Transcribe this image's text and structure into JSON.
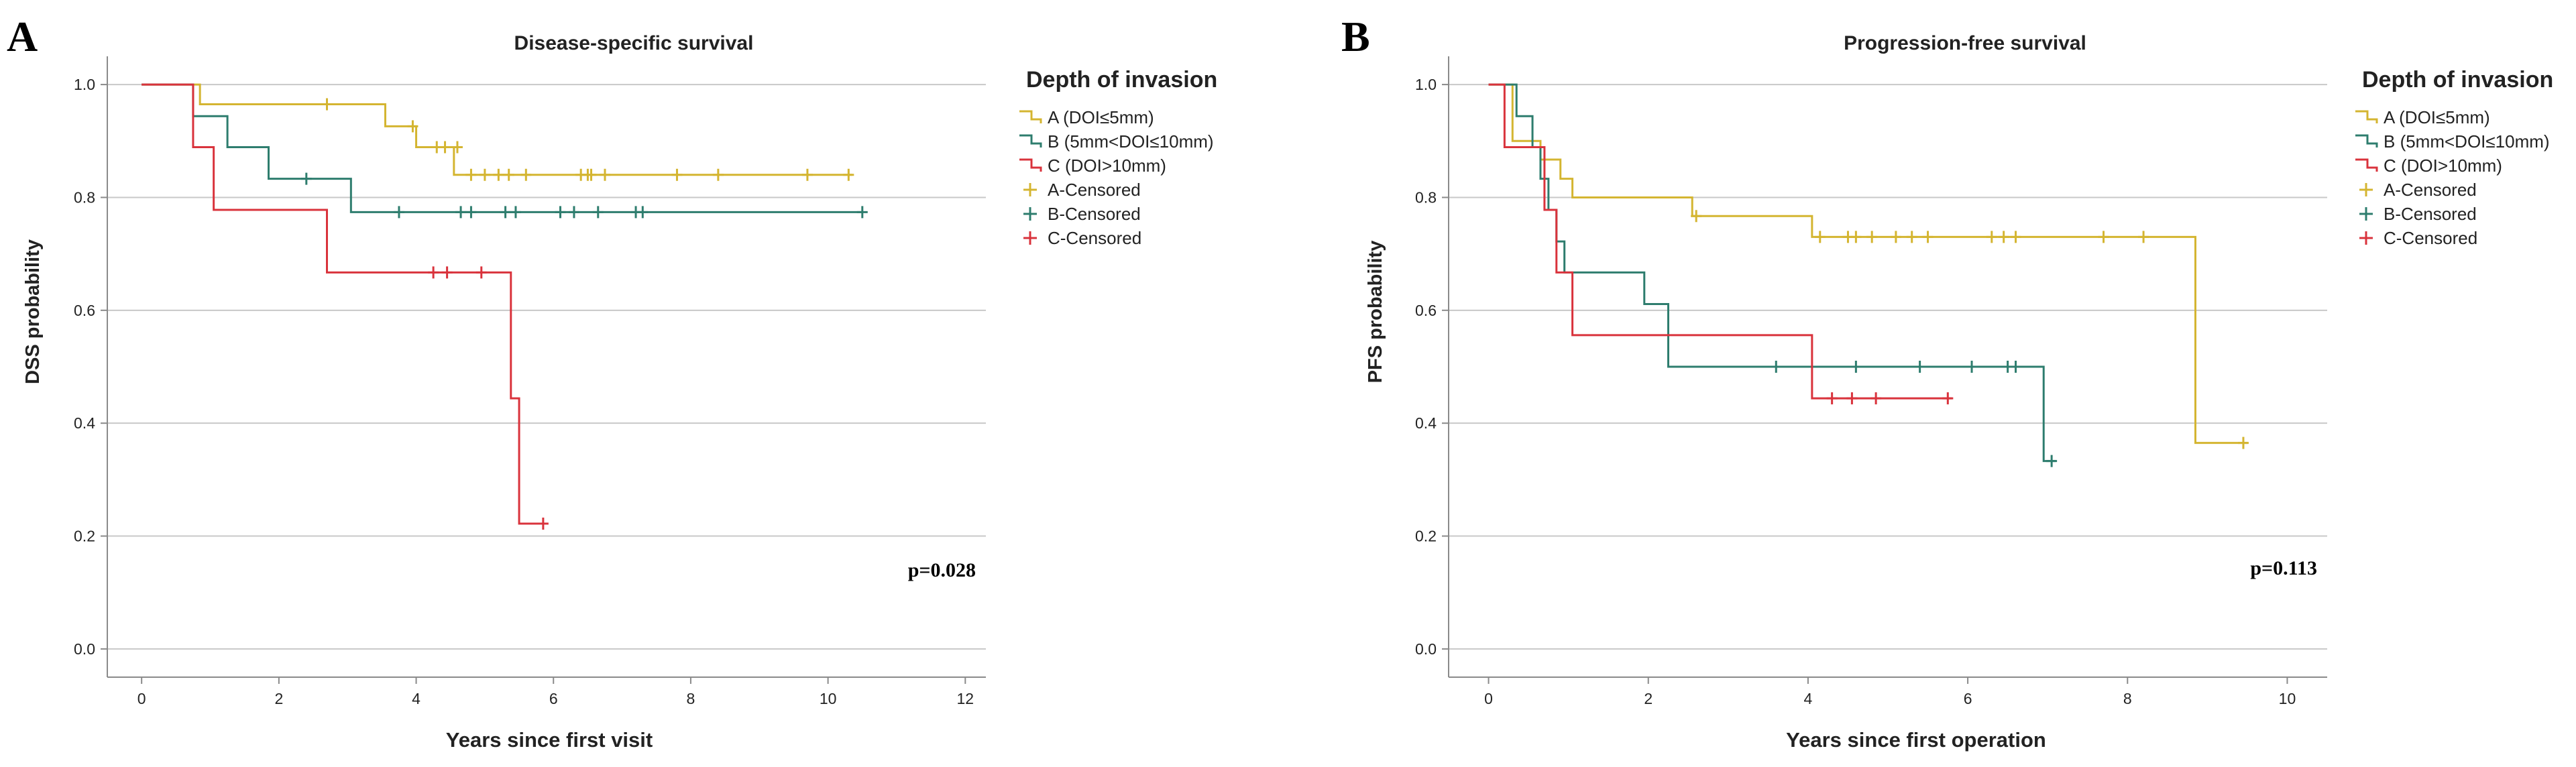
{
  "colors": {
    "A": "#d4b531",
    "B": "#2e7d6e",
    "C": "#d9333c",
    "grid": "#c8c8c8",
    "axis": "#8a8a8a"
  },
  "chart_data": [
    {
      "type": "line",
      "style": "kaplan-meier step",
      "panel_label": "A",
      "title": "Disease-specific survival",
      "xlabel": "Years since first visit",
      "ylabel": "DSS probability",
      "xlim": [
        -0.5,
        12.3
      ],
      "ylim": [
        -0.05,
        1.05
      ],
      "xticks": [
        0,
        2,
        4,
        6,
        8,
        10,
        12
      ],
      "xtick_labels": [
        "0",
        "2",
        "4",
        "6",
        "8",
        "10",
        "12"
      ],
      "yticks": [
        0.0,
        0.2,
        0.4,
        0.6,
        0.8,
        1.0
      ],
      "ytick_labels": [
        "0.0",
        "0.2",
        "0.4",
        "0.6",
        "0.8",
        "1.0"
      ],
      "grid": true,
      "p_value": "p=0.028",
      "legend": {
        "title": "Depth of invasion",
        "position": "right",
        "entries": [
          "A (DOI≤5mm)",
          "B (5mm<DOI≤10mm)",
          "C (DOI>10mm)",
          "A-Censored",
          "B-Censored",
          "C-Censored"
        ]
      },
      "series": [
        {
          "name": "A (DOI≤5mm)",
          "color_key": "A",
          "steps": [
            [
              0,
              1.0
            ],
            [
              0.85,
              0.965
            ],
            [
              3.55,
              0.926
            ],
            [
              4.0,
              0.889
            ],
            [
              4.55,
              0.84
            ],
            [
              10.35,
              0.84
            ]
          ],
          "censored": [
            [
              2.7,
              0.965
            ],
            [
              3.95,
              0.926
            ],
            [
              4.3,
              0.889
            ],
            [
              4.42,
              0.889
            ],
            [
              4.6,
              0.889
            ],
            [
              4.8,
              0.84
            ],
            [
              5.0,
              0.84
            ],
            [
              5.2,
              0.84
            ],
            [
              5.35,
              0.84
            ],
            [
              5.6,
              0.84
            ],
            [
              6.4,
              0.84
            ],
            [
              6.5,
              0.84
            ],
            [
              6.55,
              0.84
            ],
            [
              6.75,
              0.84
            ],
            [
              7.8,
              0.84
            ],
            [
              8.4,
              0.84
            ],
            [
              9.7,
              0.84
            ],
            [
              10.3,
              0.84
            ]
          ]
        },
        {
          "name": "B (5mm<DOI≤10mm)",
          "color_key": "B",
          "steps": [
            [
              0,
              1.0
            ],
            [
              0.75,
              0.944
            ],
            [
              1.25,
              0.889
            ],
            [
              1.85,
              0.833
            ],
            [
              3.05,
              0.774
            ],
            [
              10.5,
              0.774
            ]
          ],
          "censored": [
            [
              2.4,
              0.833
            ],
            [
              3.75,
              0.774
            ],
            [
              4.65,
              0.774
            ],
            [
              4.8,
              0.774
            ],
            [
              5.3,
              0.774
            ],
            [
              5.45,
              0.774
            ],
            [
              6.1,
              0.774
            ],
            [
              6.3,
              0.774
            ],
            [
              6.65,
              0.774
            ],
            [
              7.2,
              0.774
            ],
            [
              7.3,
              0.774
            ],
            [
              10.5,
              0.774
            ]
          ]
        },
        {
          "name": "C (DOI>10mm)",
          "color_key": "C",
          "steps": [
            [
              0,
              1.0
            ],
            [
              0.75,
              0.889
            ],
            [
              1.05,
              0.778
            ],
            [
              2.7,
              0.667
            ],
            [
              5.38,
              0.444
            ],
            [
              5.5,
              0.222
            ],
            [
              5.9,
              0.222
            ]
          ],
          "censored": [
            [
              4.25,
              0.667
            ],
            [
              4.45,
              0.667
            ],
            [
              4.95,
              0.667
            ],
            [
              5.85,
              0.222
            ]
          ]
        }
      ]
    },
    {
      "type": "line",
      "style": "kaplan-meier step",
      "panel_label": "B",
      "title": "Progression-free survival",
      "xlabel": "Years since first operation",
      "ylabel": "PFS probability",
      "xlim": [
        -0.5,
        10.5
      ],
      "ylim": [
        -0.05,
        1.05
      ],
      "xticks": [
        0,
        2,
        4,
        6,
        8,
        10
      ],
      "xtick_labels": [
        "0",
        "2",
        "4",
        "6",
        "8",
        "10"
      ],
      "yticks": [
        0.0,
        0.2,
        0.4,
        0.6,
        0.8,
        1.0
      ],
      "ytick_labels": [
        "0.0",
        "0.2",
        "0.4",
        "0.6",
        "0.8",
        "1.0"
      ],
      "grid": true,
      "p_value": "p=0.113",
      "legend": {
        "title": "Depth of invasion",
        "position": "right",
        "entries": [
          "A (DOI≤5mm)",
          "B (5mm<DOI≤10mm)",
          "C (DOI>10mm)",
          "A-Censored",
          "B-Censored",
          "C-Censored"
        ]
      },
      "series": [
        {
          "name": "A (DOI≤5mm)",
          "color_key": "A",
          "steps": [
            [
              0,
              1.0
            ],
            [
              0.3,
              0.9
            ],
            [
              0.65,
              0.867
            ],
            [
              0.9,
              0.833
            ],
            [
              1.05,
              0.8
            ],
            [
              2.55,
              0.767
            ],
            [
              4.05,
              0.73
            ],
            [
              8.85,
              0.365
            ],
            [
              9.5,
              0.365
            ]
          ],
          "censored": [
            [
              2.6,
              0.767
            ],
            [
              4.15,
              0.73
            ],
            [
              4.5,
              0.73
            ],
            [
              4.6,
              0.73
            ],
            [
              4.8,
              0.73
            ],
            [
              5.1,
              0.73
            ],
            [
              5.3,
              0.73
            ],
            [
              5.5,
              0.73
            ],
            [
              6.3,
              0.73
            ],
            [
              6.45,
              0.73
            ],
            [
              6.6,
              0.73
            ],
            [
              7.7,
              0.73
            ],
            [
              8.2,
              0.73
            ],
            [
              9.45,
              0.365
            ]
          ]
        },
        {
          "name": "B (5mm<DOI≤10mm)",
          "color_key": "B",
          "steps": [
            [
              0,
              1.0
            ],
            [
              0.35,
              0.944
            ],
            [
              0.55,
              0.889
            ],
            [
              0.65,
              0.833
            ],
            [
              0.75,
              0.778
            ],
            [
              0.85,
              0.722
            ],
            [
              0.95,
              0.667
            ],
            [
              1.95,
              0.611
            ],
            [
              2.25,
              0.5
            ],
            [
              6.95,
              0.333
            ],
            [
              7.1,
              0.333
            ]
          ],
          "censored": [
            [
              3.6,
              0.5
            ],
            [
              4.6,
              0.5
            ],
            [
              5.4,
              0.5
            ],
            [
              6.05,
              0.5
            ],
            [
              6.5,
              0.5
            ],
            [
              6.6,
              0.5
            ],
            [
              7.05,
              0.333
            ]
          ]
        },
        {
          "name": "C (DOI>10mm)",
          "color_key": "C",
          "steps": [
            [
              0,
              1.0
            ],
            [
              0.2,
              0.889
            ],
            [
              0.7,
              0.778
            ],
            [
              0.85,
              0.667
            ],
            [
              1.05,
              0.556
            ],
            [
              4.05,
              0.444
            ],
            [
              5.8,
              0.444
            ]
          ],
          "censored": [
            [
              4.3,
              0.444
            ],
            [
              4.55,
              0.444
            ],
            [
              4.85,
              0.444
            ],
            [
              5.75,
              0.444
            ]
          ]
        }
      ]
    }
  ]
}
